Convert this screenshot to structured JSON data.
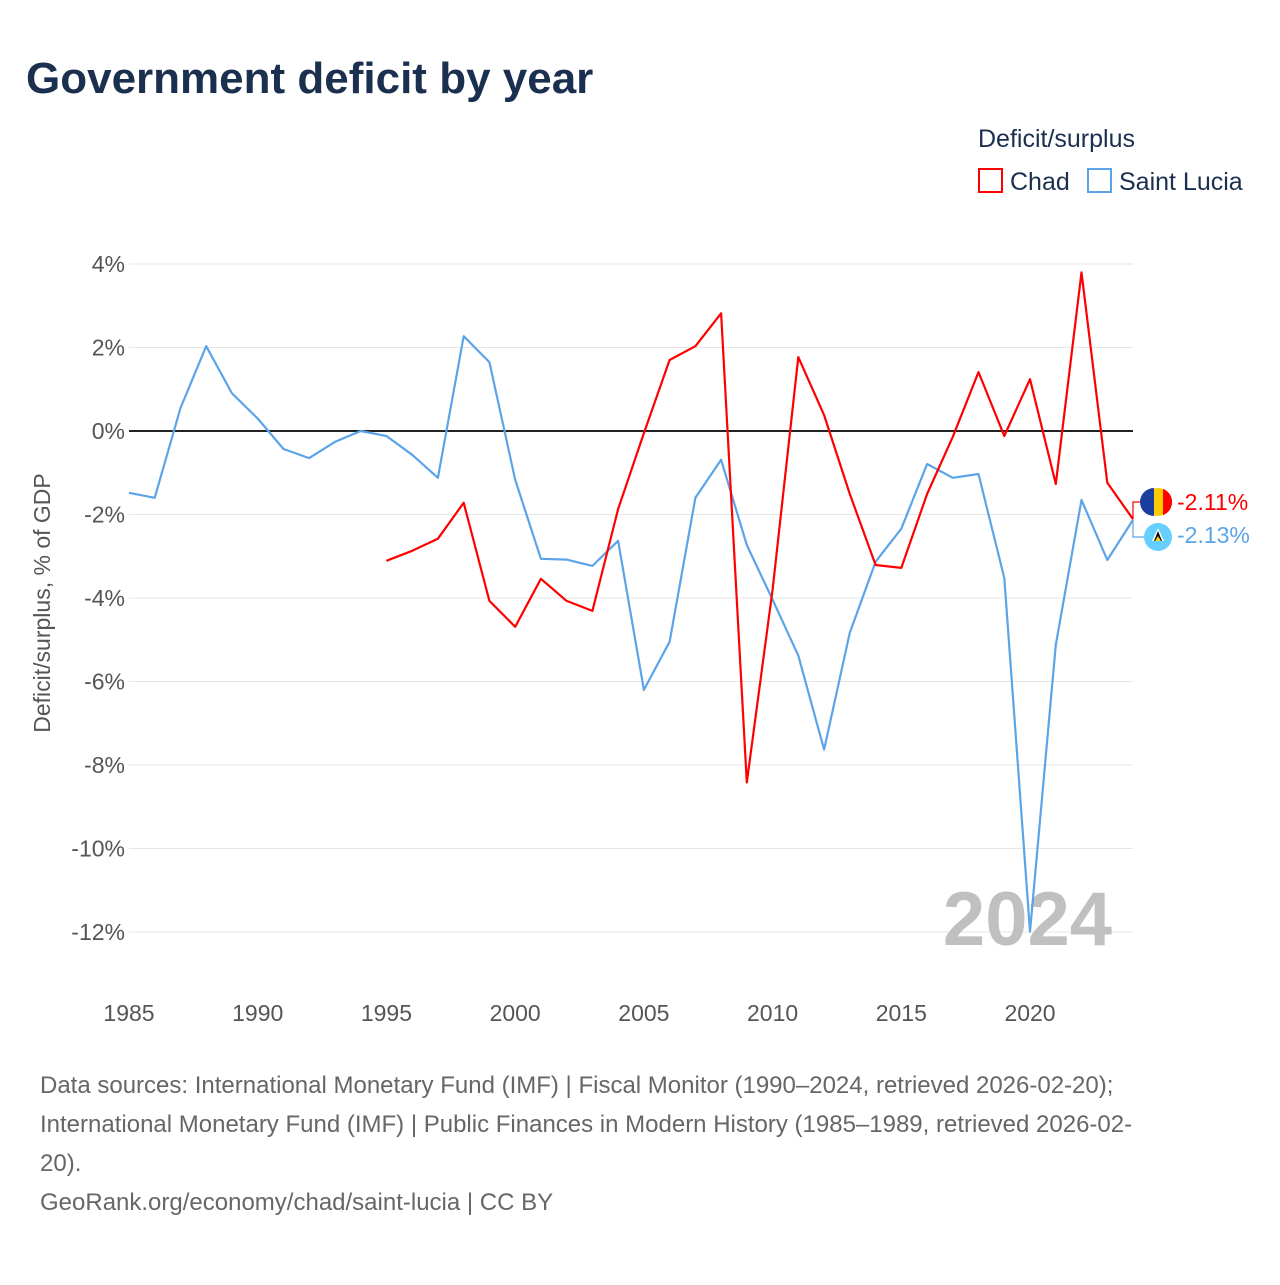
{
  "title": "Government deficit by year",
  "legend": {
    "title": "Deficit/surplus",
    "items": [
      "Chad",
      "Saint Lucia"
    ]
  },
  "year_watermark": "2024",
  "end_labels": {
    "chad": "-2.11%",
    "saint_lucia": "-2.13%"
  },
  "sources": [
    "Data sources: International Monetary Fund (IMF) | Fiscal Monitor (1990–2024, retrieved 2026-02-20);",
    "International Monetary Fund (IMF) | Public Finances in Modern History (1985–1989, retrieved 2026-02-",
    "20).",
    "GeoRank.org/economy/chad/saint-lucia | CC BY"
  ],
  "colors": {
    "chad": "#ff0000",
    "saint_lucia": "#5ba4e8",
    "zero": "#222222",
    "grid": "#e6e6e6"
  },
  "chart_data": {
    "type": "line",
    "title": "Government deficit by year",
    "xlabel": "",
    "ylabel": "Deficit/surplus, % of GDP",
    "xlim": [
      1985,
      2024
    ],
    "ylim": [
      -13,
      4
    ],
    "xticks": [
      1985,
      1990,
      1995,
      2000,
      2005,
      2010,
      2015,
      2020
    ],
    "xtick_labels": [
      "1985",
      "1990",
      "1995",
      "2000",
      "2005",
      "2010",
      "2015",
      "2020"
    ],
    "yticks": [
      4,
      2,
      0,
      -2,
      -4,
      -6,
      -8,
      -10,
      -12
    ],
    "ytick_labels": [
      "4%",
      "2%",
      "0%",
      "-2%",
      "-4%",
      "-6%",
      "-8%",
      "-10%",
      "-12%"
    ],
    "grid": true,
    "legend_position": "top-right",
    "series": [
      {
        "name": "Chad",
        "x": [
          1995,
          1996,
          1997,
          1998,
          1999,
          2000,
          2001,
          2002,
          2003,
          2004,
          2005,
          2006,
          2007,
          2008,
          2009,
          2010,
          2011,
          2012,
          2013,
          2014,
          2015,
          2016,
          2017,
          2018,
          2019,
          2020,
          2021,
          2022,
          2023,
          2024
        ],
        "values": [
          -3.11,
          -2.87,
          -2.58,
          -1.72,
          -4.07,
          -4.69,
          -3.54,
          -4.07,
          -4.31,
          -1.87,
          -0.05,
          1.7,
          2.03,
          2.82,
          -8.42,
          -3.8,
          1.77,
          0.38,
          -1.51,
          -3.21,
          -3.28,
          -1.51,
          -0.14,
          1.41,
          -0.12,
          1.24,
          -1.27,
          3.8,
          -1.24,
          -2.11
        ]
      },
      {
        "name": "Saint Lucia",
        "x": [
          1985,
          1986,
          1987,
          1988,
          1989,
          1990,
          1991,
          1992,
          1993,
          1994,
          1995,
          1996,
          1997,
          1998,
          1999,
          2000,
          2001,
          2002,
          2003,
          2004,
          2005,
          2006,
          2007,
          2008,
          2009,
          2010,
          2011,
          2012,
          2013,
          2014,
          2015,
          2016,
          2017,
          2018,
          2019,
          2020,
          2021,
          2022,
          2023,
          2024
        ],
        "values": [
          -1.48,
          -1.6,
          0.55,
          2.03,
          0.9,
          0.3,
          -0.43,
          -0.65,
          -0.26,
          0,
          -0.12,
          -0.57,
          -1.12,
          2.27,
          1.65,
          -1.17,
          -3.06,
          -3.08,
          -3.23,
          -2.63,
          -6.2,
          -5.05,
          -1.6,
          -0.69,
          -2.73,
          -4.04,
          -5.38,
          -7.63,
          -4.83,
          -3.13,
          -2.34,
          -0.79,
          -1.12,
          -1.03,
          -3.52,
          -11.99,
          -5.12,
          -1.65,
          -3.09,
          -2.13
        ]
      }
    ]
  }
}
